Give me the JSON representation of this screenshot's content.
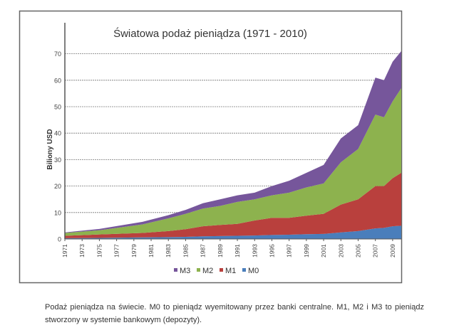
{
  "chart_data": {
    "type": "area",
    "stacked": true,
    "title": "Światowa podaż pieniądza (1971 - 2010)",
    "xlabel": "",
    "ylabel": "Biliony USD",
    "ylim": [
      0,
      75
    ],
    "xlim": [
      1971,
      2010
    ],
    "yticks": [
      0,
      10,
      20,
      30,
      40,
      50,
      60,
      70
    ],
    "xticks": [
      "1971",
      "1973",
      "1975",
      "1977",
      "1979",
      "1981",
      "1983",
      "1985",
      "1987",
      "1989",
      "1991",
      "1993",
      "1995",
      "1997",
      "1999",
      "2001",
      "2003",
      "2005",
      "2007",
      "2009"
    ],
    "grid": "horizontal dashed",
    "legend_position": "bottom",
    "x": [
      1971,
      1975,
      1980,
      1983,
      1985,
      1987,
      1989,
      1991,
      1993,
      1995,
      1997,
      1999,
      2001,
      2003,
      2005,
      2007,
      2008,
      2009,
      2010
    ],
    "series": [
      {
        "name": "M0",
        "color": "#4a7ebb",
        "values": [
          0.3,
          0.4,
          0.6,
          0.7,
          0.8,
          1.0,
          1.1,
          1.2,
          1.3,
          1.5,
          1.6,
          1.8,
          1.9,
          2.5,
          3.0,
          4.0,
          4.2,
          4.8,
          5.0
        ]
      },
      {
        "name": "M1",
        "color": "#b9403d",
        "values": [
          0.9,
          1.3,
          1.7,
          2.3,
          2.9,
          3.8,
          4.2,
          4.5,
          5.7,
          6.5,
          6.4,
          7.0,
          7.6,
          10.5,
          12.0,
          16.0,
          15.8,
          18.2,
          20.0
        ]
      },
      {
        "name": "M2",
        "color": "#8db24e",
        "values": [
          1.1,
          1.6,
          3.2,
          4.8,
          5.8,
          6.7,
          7.2,
          8.3,
          8.0,
          8.5,
          9.5,
          10.7,
          11.5,
          16.0,
          19.0,
          27.0,
          26.0,
          29.0,
          32.0
        ]
      },
      {
        "name": "M3",
        "color": "#76569b",
        "values": [
          0.2,
          0.5,
          1.0,
          1.2,
          1.5,
          2.0,
          2.5,
          2.5,
          2.5,
          3.5,
          4.5,
          5.5,
          7.0,
          9.0,
          9.0,
          14.0,
          14.0,
          15.0,
          14.0
        ]
      }
    ],
    "legend_order": [
      "M3",
      "M2",
      "M1",
      "M0"
    ]
  },
  "caption": "Podaż pieniądza na świecie. M0 to pieniądz wyemitowany przez banki centralne. M1, M2 i M3 to pieniądz stworzony w systemie bankowym (depozyty)."
}
